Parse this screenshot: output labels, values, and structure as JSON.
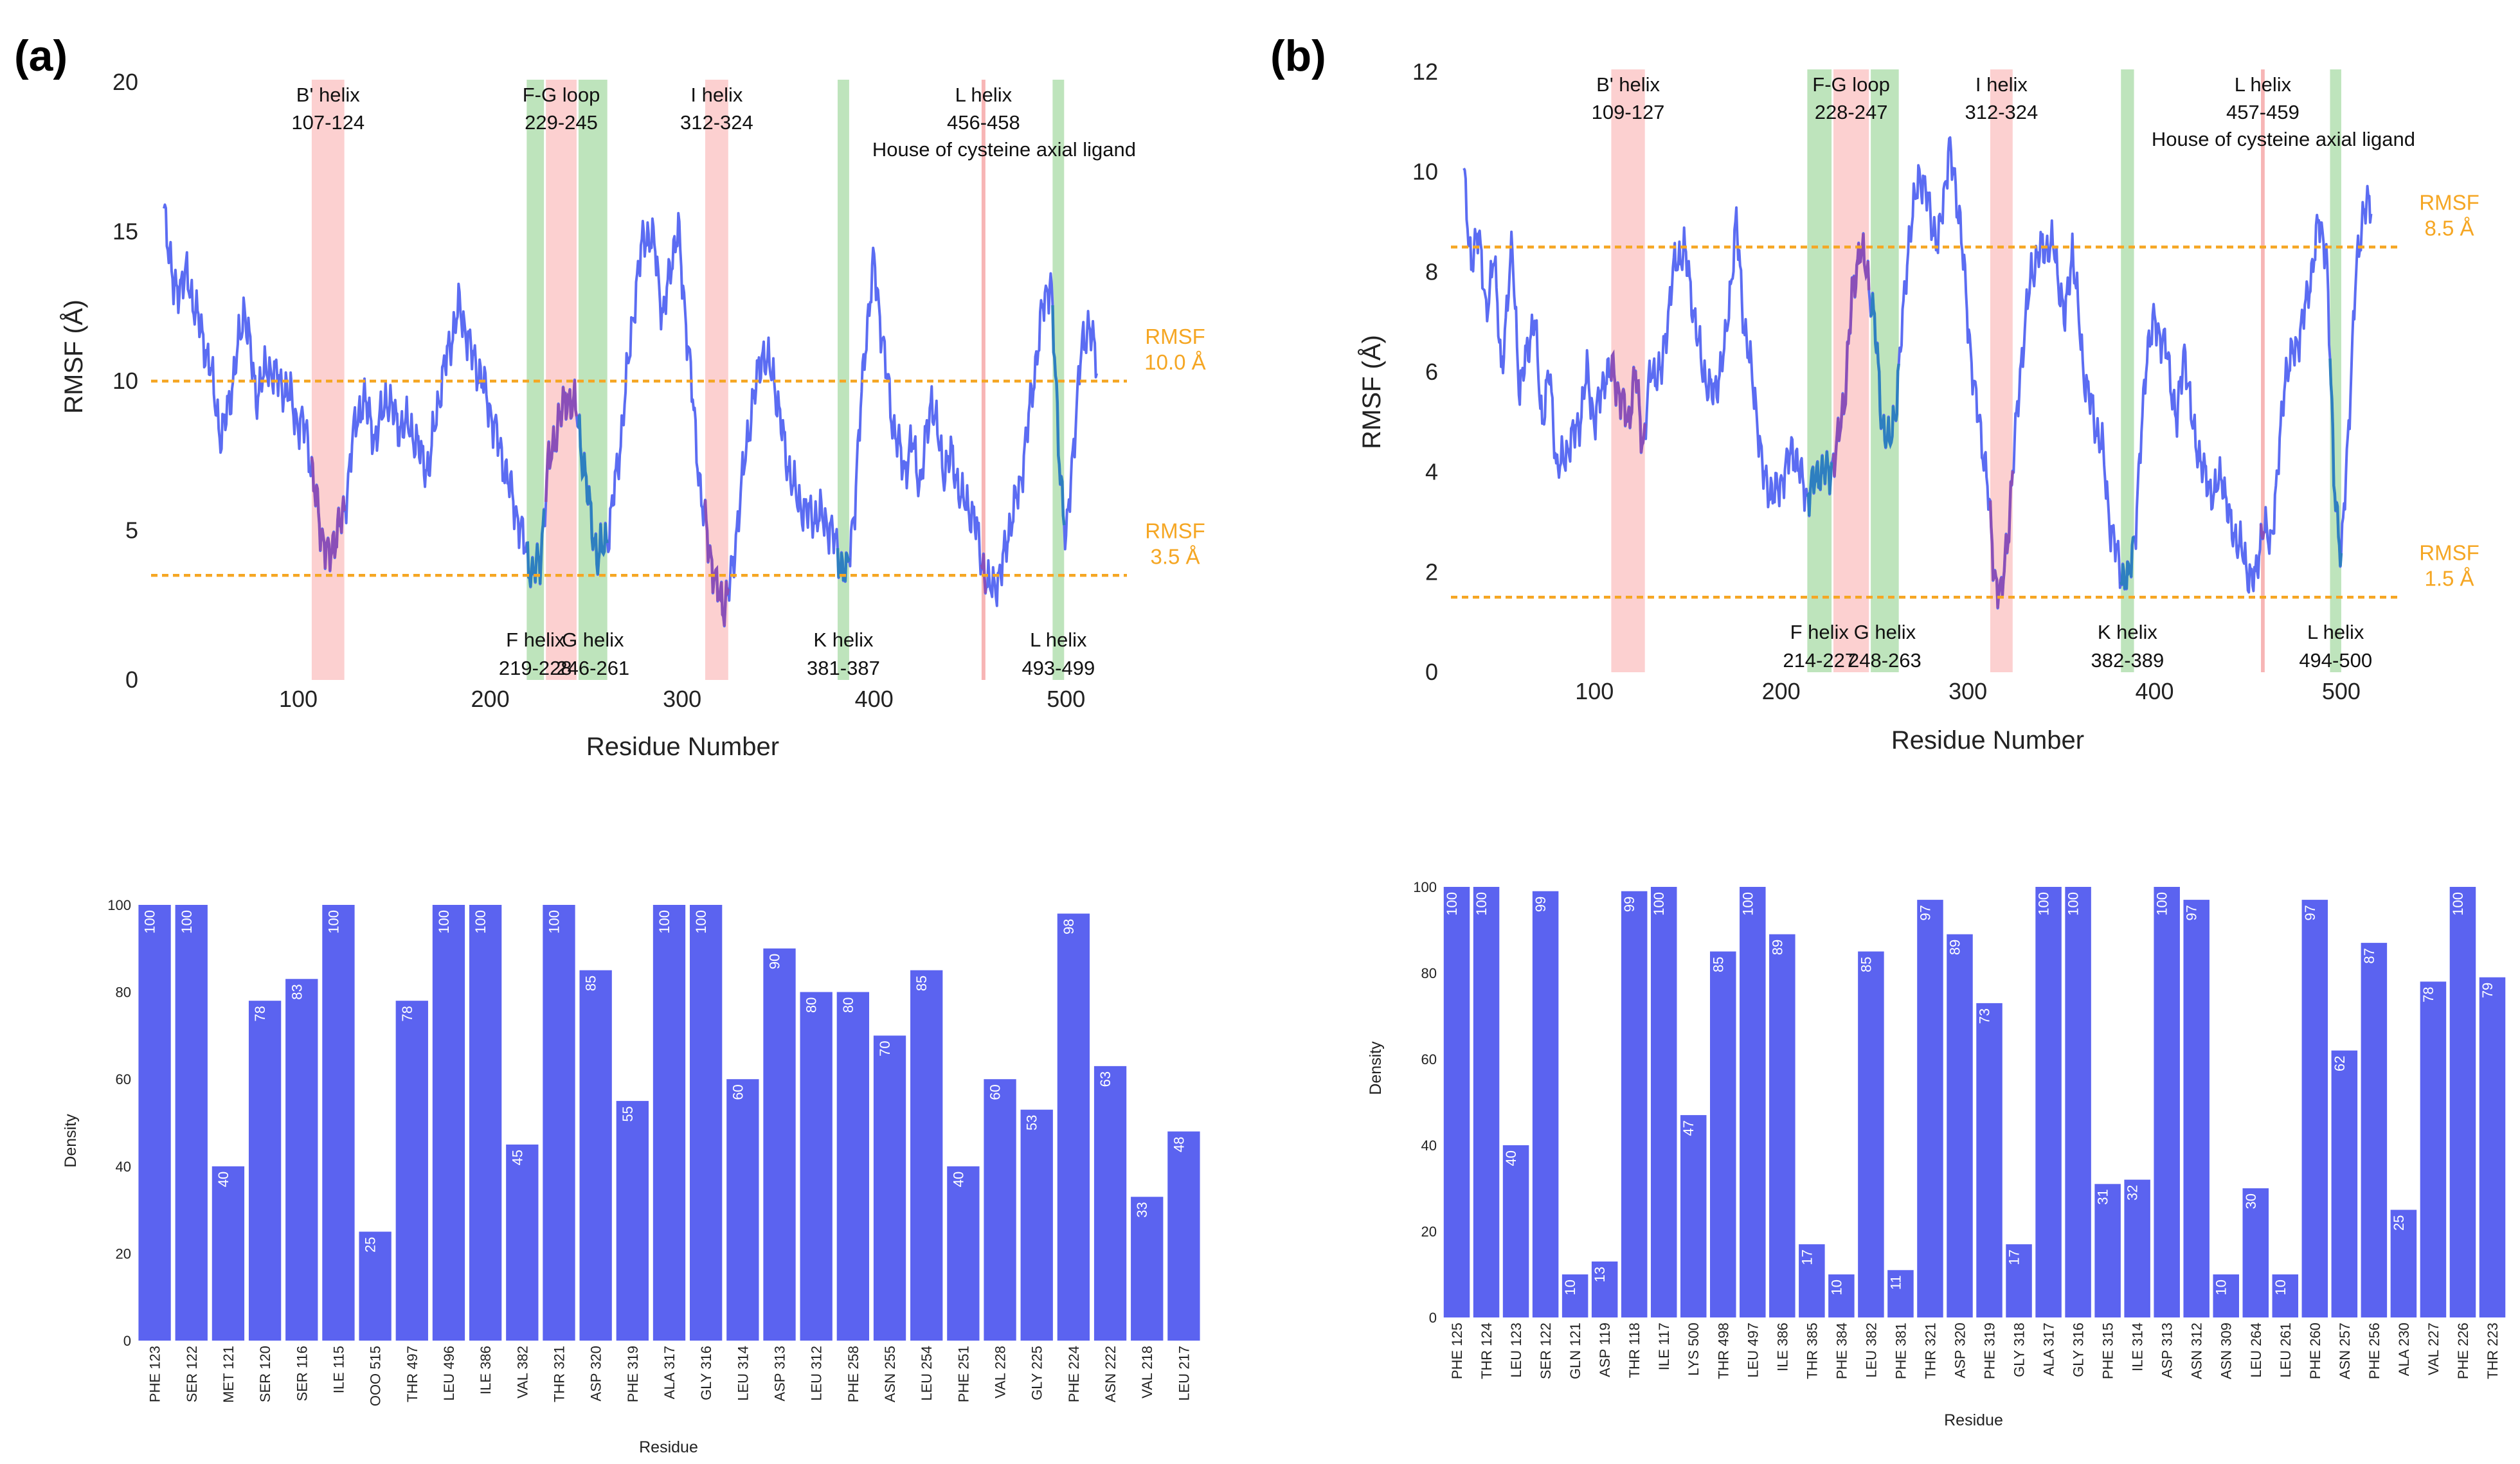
{
  "panels": [
    {
      "label": "(a)"
    },
    {
      "label": "(b)"
    }
  ],
  "chart_data": [
    {
      "id": "a-rmsf",
      "type": "line",
      "panel": "(a)",
      "xlabel": "Residue Number",
      "ylabel": "RMSF (Å)",
      "xlim": [
        30,
        520
      ],
      "ylim": [
        0,
        20
      ],
      "xticks": [
        100,
        200,
        300,
        400,
        500
      ],
      "yticks": [
        0,
        5,
        10,
        15,
        20
      ],
      "series_color": "#5b6cf2",
      "highlight_color": "#8a4fb8",
      "green_line_color": "#2e7fc0",
      "x_start": 30,
      "x_end": 516,
      "profile": [
        [
          30,
          16
        ],
        [
          35,
          13
        ],
        [
          42,
          13.5
        ],
        [
          48,
          12
        ],
        [
          54,
          10.5
        ],
        [
          60,
          8
        ],
        [
          66,
          10
        ],
        [
          72,
          12.5
        ],
        [
          78,
          9.5
        ],
        [
          84,
          10.5
        ],
        [
          90,
          10
        ],
        [
          96,
          9.5
        ],
        [
          100,
          8.5
        ],
        [
          104,
          8.5
        ],
        [
          108,
          6.5
        ],
        [
          112,
          5
        ],
        [
          116,
          4
        ],
        [
          120,
          5
        ],
        [
          124,
          5.5
        ],
        [
          128,
          8
        ],
        [
          134,
          9.5
        ],
        [
          140,
          8
        ],
        [
          146,
          9.5
        ],
        [
          152,
          8.5
        ],
        [
          158,
          8.5
        ],
        [
          164,
          7.5
        ],
        [
          168,
          7
        ],
        [
          172,
          9
        ],
        [
          178,
          11
        ],
        [
          184,
          12.5
        ],
        [
          190,
          11
        ],
        [
          196,
          10
        ],
        [
          200,
          9
        ],
        [
          206,
          7.5
        ],
        [
          212,
          6
        ],
        [
          218,
          4.5
        ],
        [
          222,
          3.5
        ],
        [
          226,
          4
        ],
        [
          230,
          7
        ],
        [
          235,
          8.5
        ],
        [
          240,
          9.5
        ],
        [
          245,
          9
        ],
        [
          250,
          6.5
        ],
        [
          256,
          4
        ],
        [
          262,
          5
        ],
        [
          268,
          8
        ],
        [
          274,
          12
        ],
        [
          280,
          15
        ],
        [
          286,
          14.5
        ],
        [
          290,
          12
        ],
        [
          294,
          14
        ],
        [
          298,
          15
        ],
        [
          302,
          12
        ],
        [
          306,
          9
        ],
        [
          310,
          6
        ],
        [
          314,
          4.5
        ],
        [
          318,
          3
        ],
        [
          322,
          2.5
        ],
        [
          326,
          3.5
        ],
        [
          330,
          6
        ],
        [
          336,
          9
        ],
        [
          342,
          11
        ],
        [
          348,
          10
        ],
        [
          354,
          7.5
        ],
        [
          360,
          6
        ],
        [
          366,
          5.5
        ],
        [
          372,
          5.5
        ],
        [
          378,
          5
        ],
        [
          382,
          4
        ],
        [
          386,
          3.5
        ],
        [
          390,
          6
        ],
        [
          395,
          11
        ],
        [
          400,
          14
        ],
        [
          405,
          11
        ],
        [
          410,
          8.5
        ],
        [
          416,
          7
        ],
        [
          420,
          8
        ],
        [
          424,
          6.5
        ],
        [
          430,
          9.5
        ],
        [
          436,
          7
        ],
        [
          440,
          7.5
        ],
        [
          446,
          6
        ],
        [
          452,
          5.5
        ],
        [
          456,
          4
        ],
        [
          460,
          3
        ],
        [
          466,
          3.5
        ],
        [
          470,
          5
        ],
        [
          476,
          6.5
        ],
        [
          482,
          9.5
        ],
        [
          488,
          12.5
        ],
        [
          492,
          13.5
        ],
        [
          496,
          8
        ],
        [
          500,
          4.5
        ],
        [
          504,
          8
        ],
        [
          508,
          11
        ],
        [
          512,
          12
        ],
        [
          516,
          10.5
        ]
      ],
      "noise_amplitude": 0.9,
      "ref_lines": [
        {
          "value": 10.0,
          "label_line1": "RMSF",
          "label_line2": "10.0 Å"
        },
        {
          "value": 3.5,
          "label_line1": "RMSF",
          "label_line2": "3.5 Å"
        }
      ],
      "bands": [
        {
          "name": "B' helix",
          "range_text": "107-124",
          "start": 107,
          "end": 124,
          "color": "red",
          "label_pos": "top"
        },
        {
          "name": "F-G loop",
          "range_text": "229-245",
          "start": 229,
          "end": 245,
          "color": "red",
          "label_pos": "top"
        },
        {
          "name": "I helix",
          "range_text": "312-324",
          "start": 312,
          "end": 324,
          "color": "red",
          "label_pos": "top"
        },
        {
          "name": "L helix",
          "range_text": "456-458",
          "start": 456,
          "end": 458,
          "color": "red",
          "label_pos": "top",
          "extra": "House of cysteine axial ligand"
        },
        {
          "name": "F helix",
          "range_text": "219-228",
          "start": 219,
          "end": 228,
          "color": "green",
          "label_pos": "bottom"
        },
        {
          "name": "G helix",
          "range_text": "246-261",
          "start": 246,
          "end": 261,
          "color": "green",
          "label_pos": "bottom"
        },
        {
          "name": "K helix",
          "range_text": "381-387",
          "start": 381,
          "end": 387,
          "color": "green",
          "label_pos": "bottom"
        },
        {
          "name": "L helix",
          "range_text": "493-499",
          "start": 493,
          "end": 499,
          "color": "green",
          "label_pos": "bottom"
        }
      ]
    },
    {
      "id": "b-rmsf",
      "type": "line",
      "panel": "(b)",
      "xlabel": "Residue Number",
      "ylabel": "RMSF (Å)",
      "xlim": [
        30,
        520
      ],
      "ylim": [
        0,
        12
      ],
      "xticks": [
        100,
        200,
        300,
        400,
        500
      ],
      "yticks": [
        0,
        2,
        4,
        6,
        8,
        10,
        12
      ],
      "series_color": "#5b6cf2",
      "highlight_color": "#8a4fb8",
      "green_line_color": "#2e7fc0",
      "x_start": 30,
      "x_end": 516,
      "profile": [
        [
          30,
          10.2
        ],
        [
          34,
          8
        ],
        [
          38,
          9
        ],
        [
          42,
          7
        ],
        [
          46,
          8.5
        ],
        [
          50,
          6
        ],
        [
          56,
          8.5
        ],
        [
          60,
          5.5
        ],
        [
          64,
          6.5
        ],
        [
          68,
          7
        ],
        [
          72,
          5
        ],
        [
          76,
          6
        ],
        [
          80,
          4
        ],
        [
          86,
          4.5
        ],
        [
          92,
          5
        ],
        [
          96,
          6
        ],
        [
          100,
          5
        ],
        [
          106,
          6
        ],
        [
          110,
          6
        ],
        [
          114,
          5.5
        ],
        [
          118,
          5
        ],
        [
          122,
          6
        ],
        [
          126,
          4.5
        ],
        [
          130,
          6
        ],
        [
          136,
          6
        ],
        [
          142,
          8
        ],
        [
          148,
          8.5
        ],
        [
          152,
          7.5
        ],
        [
          158,
          6
        ],
        [
          164,
          5.5
        ],
        [
          170,
          6.5
        ],
        [
          176,
          9
        ],
        [
          180,
          7
        ],
        [
          186,
          5.5
        ],
        [
          190,
          4
        ],
        [
          196,
          3.5
        ],
        [
          202,
          4
        ],
        [
          206,
          4.5
        ],
        [
          210,
          4
        ],
        [
          214,
          3.5
        ],
        [
          220,
          4
        ],
        [
          226,
          4
        ],
        [
          230,
          4.5
        ],
        [
          234,
          5.5
        ],
        [
          238,
          7.5
        ],
        [
          242,
          8.5
        ],
        [
          246,
          8
        ],
        [
          250,
          7
        ],
        [
          254,
          5
        ],
        [
          258,
          4.5
        ],
        [
          262,
          5.5
        ],
        [
          268,
          8.5
        ],
        [
          274,
          10
        ],
        [
          278,
          9.5
        ],
        [
          284,
          8.5
        ],
        [
          290,
          10.5
        ],
        [
          296,
          9
        ],
        [
          300,
          7
        ],
        [
          304,
          5.5
        ],
        [
          310,
          4
        ],
        [
          314,
          2
        ],
        [
          318,
          1.5
        ],
        [
          322,
          3
        ],
        [
          328,
          6
        ],
        [
          334,
          8
        ],
        [
          340,
          8.5
        ],
        [
          346,
          8.5
        ],
        [
          352,
          7
        ],
        [
          356,
          8.5
        ],
        [
          362,
          6
        ],
        [
          368,
          5
        ],
        [
          372,
          4.5
        ],
        [
          376,
          3
        ],
        [
          382,
          2
        ],
        [
          386,
          1.8
        ],
        [
          390,
          3
        ],
        [
          396,
          6.5
        ],
        [
          400,
          7
        ],
        [
          406,
          6.5
        ],
        [
          412,
          5
        ],
        [
          416,
          6.5
        ],
        [
          420,
          5
        ],
        [
          426,
          4
        ],
        [
          432,
          3.5
        ],
        [
          436,
          4
        ],
        [
          440,
          3
        ],
        [
          446,
          2.5
        ],
        [
          450,
          2
        ],
        [
          454,
          1.8
        ],
        [
          458,
          3
        ],
        [
          462,
          2.5
        ],
        [
          466,
          4
        ],
        [
          470,
          6
        ],
        [
          476,
          6.5
        ],
        [
          482,
          7.5
        ],
        [
          488,
          9
        ],
        [
          492,
          8.5
        ],
        [
          496,
          4
        ],
        [
          500,
          2.2
        ],
        [
          504,
          5
        ],
        [
          508,
          8
        ],
        [
          512,
          9.3
        ]
      ],
      "noise_amplitude": 0.5,
      "ref_lines": [
        {
          "value": 8.5,
          "label_line1": "RMSF",
          "label_line2": "8.5 Å"
        },
        {
          "value": 1.5,
          "label_line1": "RMSF",
          "label_line2": "1.5 Å"
        }
      ],
      "bands": [
        {
          "name": "B' helix",
          "range_text": "109-127",
          "start": 109,
          "end": 127,
          "color": "red",
          "label_pos": "top"
        },
        {
          "name": "F-G loop",
          "range_text": "228-247",
          "start": 228,
          "end": 247,
          "color": "red",
          "label_pos": "top"
        },
        {
          "name": "I helix",
          "range_text": "312-324",
          "start": 312,
          "end": 324,
          "color": "red",
          "label_pos": "top"
        },
        {
          "name": "L helix",
          "range_text": "457-459",
          "start": 457,
          "end": 459,
          "color": "red",
          "label_pos": "top",
          "extra": "House of cysteine axial ligand"
        },
        {
          "name": "F helix",
          "range_text": "214-227",
          "start": 214,
          "end": 227,
          "color": "green",
          "label_pos": "bottom"
        },
        {
          "name": "G helix",
          "range_text": "248-263",
          "start": 248,
          "end": 263,
          "color": "green",
          "label_pos": "bottom"
        },
        {
          "name": "K helix",
          "range_text": "382-389",
          "start": 382,
          "end": 389,
          "color": "green",
          "label_pos": "bottom"
        },
        {
          "name": "L helix",
          "range_text": "494-500",
          "start": 494,
          "end": 500,
          "color": "green",
          "label_pos": "bottom"
        }
      ]
    },
    {
      "id": "a-density",
      "type": "bar",
      "panel": "(a)",
      "xlabel": "Residue",
      "ylabel": "Density",
      "ylim": [
        0,
        100
      ],
      "yticks": [
        0,
        20,
        40,
        60,
        80,
        100
      ],
      "bar_color": "#5b63f0",
      "categories": [
        "PHE 123",
        "SER 122",
        "MET 121",
        "SER 120",
        "SER 116",
        "ILE 115",
        "OOO 515",
        "THR 497",
        "LEU 496",
        "ILE 386",
        "VAL 382",
        "THR 321",
        "ASP 320",
        "PHE 319",
        "ALA 317",
        "GLY 316",
        "LEU 314",
        "ASP 313",
        "LEU 312",
        "PHE 258",
        "ASN 255",
        "LEU 254",
        "PHE 251",
        "VAL 228",
        "GLY 225",
        "PHE 224",
        "ASN 222",
        "VAL 218",
        "LEU 217"
      ],
      "values": [
        100,
        100,
        40,
        78,
        83,
        100,
        25,
        78,
        100,
        100,
        45,
        100,
        85,
        55,
        100,
        100,
        60,
        90,
        80,
        80,
        70,
        85,
        40,
        60,
        53,
        98,
        63,
        33,
        48
      ]
    },
    {
      "id": "b-density",
      "type": "bar",
      "panel": "(b)",
      "xlabel": "Residue",
      "ylabel": "Density",
      "ylim": [
        0,
        100
      ],
      "yticks": [
        0,
        20,
        40,
        60,
        80,
        100
      ],
      "bar_color": "#5b63f0",
      "categories": [
        "PHE 125",
        "THR 124",
        "LEU 123",
        "SER 122",
        "GLN 121",
        "ASP 119",
        "THR 118",
        "ILE 117",
        "LYS 500",
        "THR 498",
        "LEU 497",
        "ILE 386",
        "THR 385",
        "PHE 384",
        "LEU 382",
        "PHE 381",
        "THR 321",
        "ASP 320",
        "PHE 319",
        "GLY 318",
        "ALA 317",
        "GLY 316",
        "PHE 315",
        "ILE 314",
        "ASP 313",
        "ASN 312",
        "ASN 309",
        "LEU 264",
        "LEU 261",
        "PHE 260",
        "ASN 257",
        "PHE 256",
        "ALA 230",
        "VAL 227",
        "PHE 226",
        "THR 223"
      ],
      "values": [
        100,
        100,
        40,
        99,
        10,
        13,
        99,
        100,
        47,
        85,
        100,
        89,
        17,
        10,
        85,
        11,
        97,
        89,
        73,
        17,
        100,
        100,
        31,
        32,
        100,
        97,
        10,
        30,
        10,
        97,
        62,
        87,
        25,
        78,
        100,
        79
      ]
    }
  ]
}
